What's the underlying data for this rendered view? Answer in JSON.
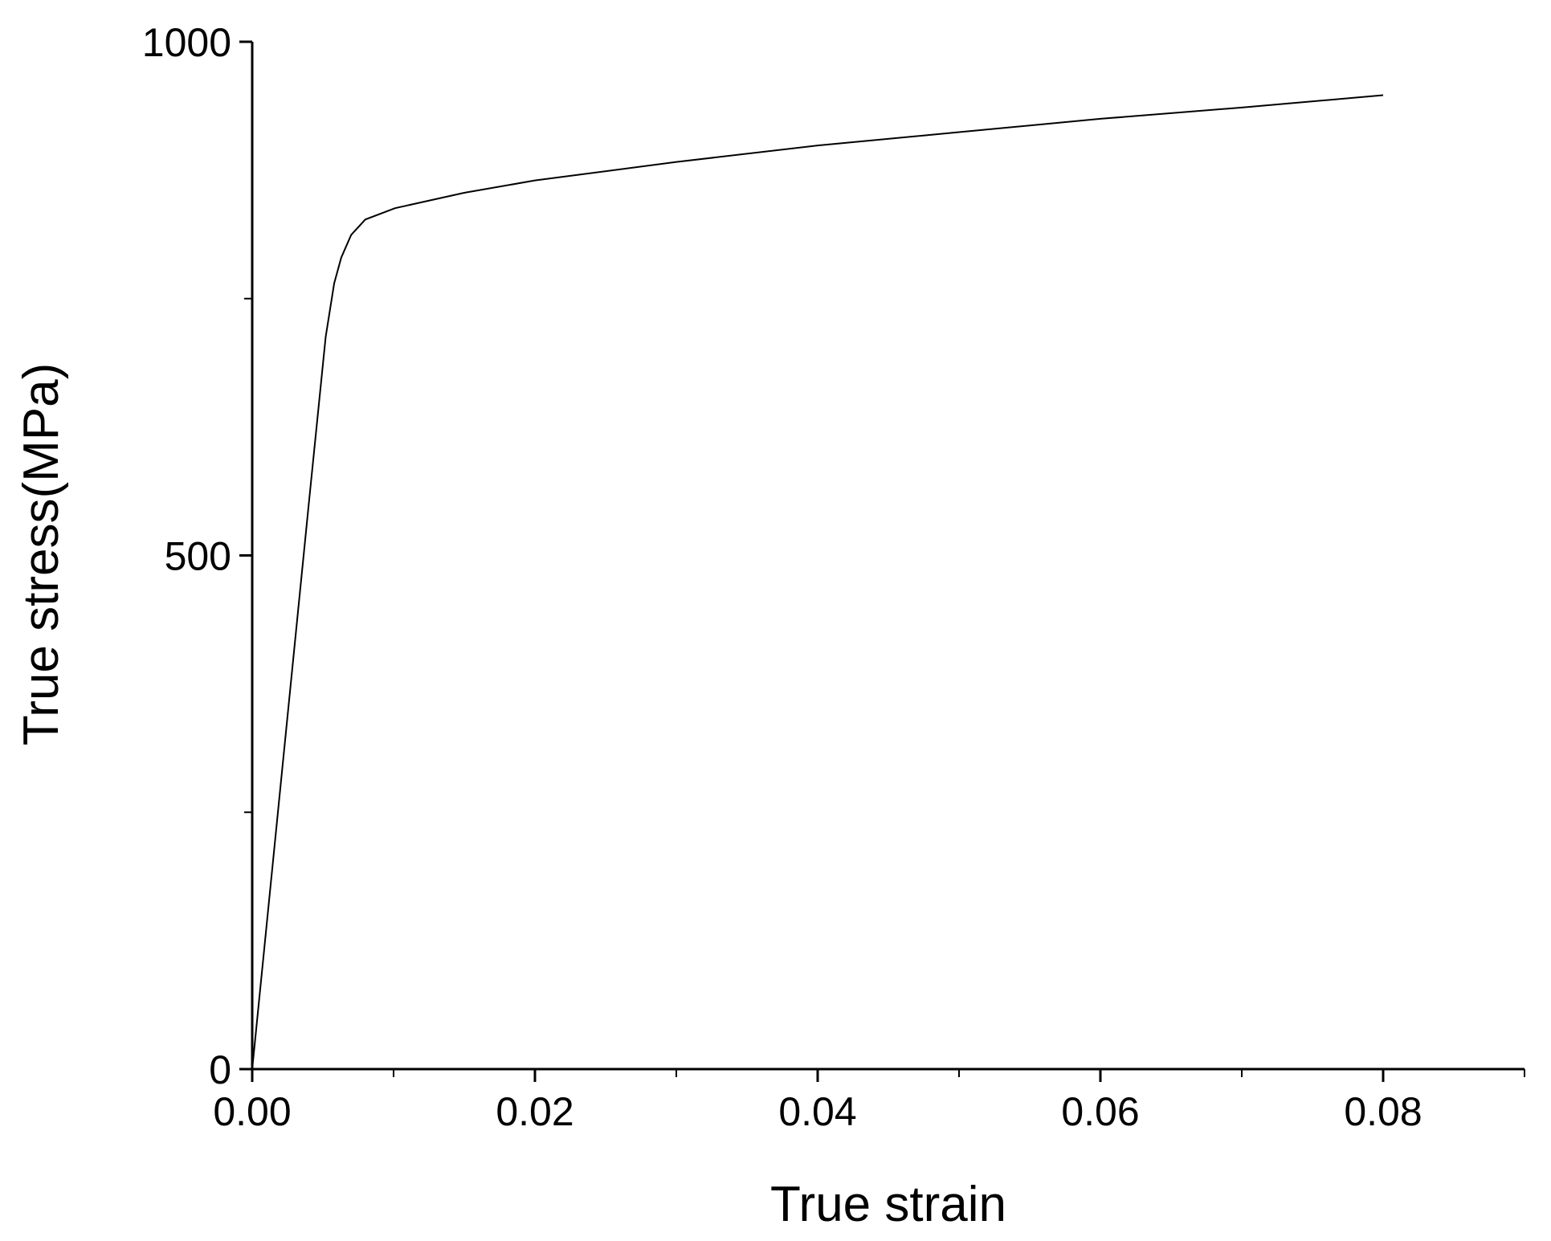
{
  "chart_data": {
    "type": "line",
    "x_label": "True strain",
    "y_label": "True stress(MPa)",
    "x": [
      0,
      0.002,
      0.004,
      0.0052,
      0.0058,
      0.0063,
      0.007,
      0.008,
      0.0101,
      0.015,
      0.02,
      0.03,
      0.04,
      0.05,
      0.06,
      0.07,
      0.08
    ],
    "series": [
      {
        "color": "#000000",
        "values": [
          0,
          275,
          550,
          713,
          765,
          790,
          812,
          827,
          838,
          853,
          865,
          883,
          899,
          912,
          925,
          936,
          948
        ]
      }
    ],
    "xlim": [
      0,
      0.09
    ],
    "ylim": [
      0,
      1000
    ],
    "xticks": [
      {
        "value": 0,
        "label": "0.00"
      },
      {
        "value": 0.02,
        "label": "0.02"
      },
      {
        "value": 0.04,
        "label": "0.04"
      },
      {
        "value": 0.06,
        "label": "0.06"
      },
      {
        "value": 0.08,
        "label": "0.08"
      }
    ],
    "xminorticks": [
      0.01,
      0.03,
      0.05,
      0.07,
      0.09
    ],
    "yticks": [
      0,
      500,
      1000
    ],
    "yminorticks": [
      250,
      750
    ],
    "grid": false
  }
}
